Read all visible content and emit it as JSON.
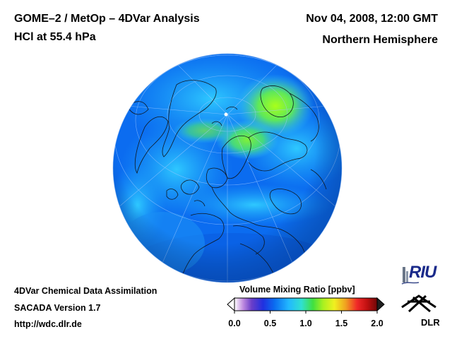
{
  "header": {
    "title": "GOME–2 / MetOp – 4DVar Analysis",
    "subtitle": "HCl at 55.4 hPa",
    "datetime": "Nov 04, 2008, 12:00 GMT",
    "region": "Northern Hemisphere"
  },
  "footer": {
    "system": "4DVar Chemical Data Assimilation",
    "version": "SACADA Version 1.7",
    "url": "http://wdc.dlr.de"
  },
  "colorbar": {
    "label": "Volume Mixing Ratio [ppbv]",
    "ticks": [
      "0.0",
      "0.5",
      "1.0",
      "1.5",
      "2.0"
    ],
    "min": 0.0,
    "max": 2.0
  },
  "logos": {
    "riu": "RIU",
    "dlr": "DLR"
  },
  "colors": {
    "background": "#0b6cf0",
    "high": "#7cff20",
    "mid": "#33c8ff"
  }
}
